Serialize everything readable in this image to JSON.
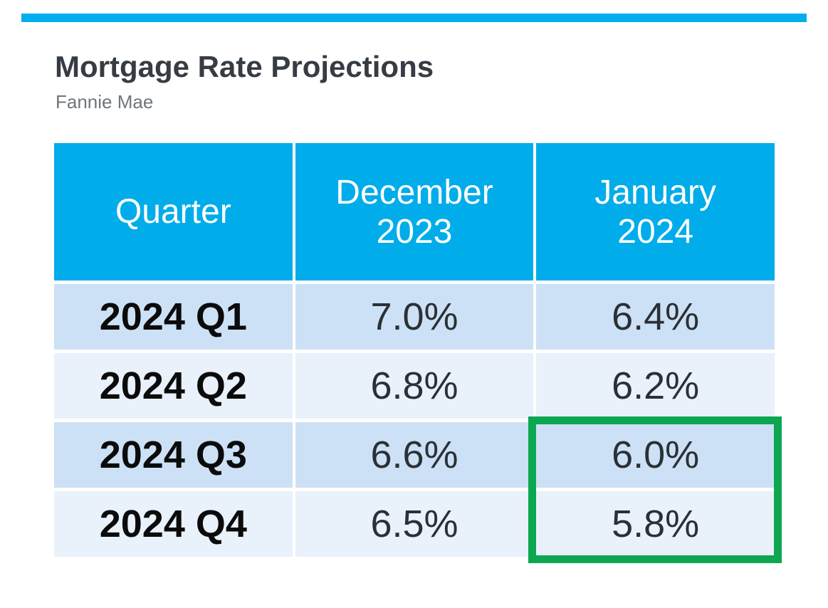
{
  "header": {
    "title": "Mortgage Rate Projections",
    "subtitle": "Fannie Mae"
  },
  "table": {
    "columns": [
      {
        "line1": "Quarter",
        "line2": ""
      },
      {
        "line1": "December",
        "line2": "2023"
      },
      {
        "line1": "January",
        "line2": "2024"
      }
    ],
    "rows": [
      {
        "quarter": "2024 Q1",
        "dec_2023": "7.0%",
        "jan_2024": "6.4%"
      },
      {
        "quarter": "2024 Q2",
        "dec_2023": "6.8%",
        "jan_2024": "6.2%"
      },
      {
        "quarter": "2024 Q3",
        "dec_2023": "6.6%",
        "jan_2024": "6.0%"
      },
      {
        "quarter": "2024 Q4",
        "dec_2023": "6.5%",
        "jan_2024": "5.8%"
      }
    ]
  },
  "highlight": {
    "column": "January 2024",
    "rows": [
      "2024 Q3",
      "2024 Q4"
    ],
    "values": [
      "6.0%",
      "5.8%"
    ]
  },
  "colors": {
    "accent_bar": "#00AEEF",
    "table_header": "#00ACEA",
    "row_odd": "#CCE1F5",
    "row_even": "#E9F1FB",
    "highlight_green": "#0CA750",
    "title_text": "#363C43",
    "subtitle_text": "#6F767D",
    "quarter_text": "#0B0B0B",
    "value_text": "#2B3035"
  },
  "chart_data": {
    "type": "table",
    "title": "Mortgage Rate Projections",
    "subtitle": "Fannie Mae",
    "columns": [
      "Quarter",
      "December 2023",
      "January 2024"
    ],
    "rows": [
      [
        "2024 Q1",
        "7.0%",
        "6.4%"
      ],
      [
        "2024 Q2",
        "6.8%",
        "6.2%"
      ],
      [
        "2024 Q3",
        "6.6%",
        "6.0%"
      ],
      [
        "2024 Q4",
        "6.5%",
        "5.8%"
      ]
    ],
    "series": [
      {
        "name": "December 2023",
        "values": [
          7.0,
          6.8,
          6.6,
          6.5
        ]
      },
      {
        "name": "January 2024",
        "values": [
          6.4,
          6.2,
          6.0,
          5.8
        ]
      }
    ],
    "categories": [
      "2024 Q1",
      "2024 Q2",
      "2024 Q3",
      "2024 Q4"
    ],
    "annotations": [
      {
        "type": "highlight-box",
        "column": "January 2024",
        "rows": [
          "2024 Q3",
          "2024 Q4"
        ],
        "color": "#0CA750"
      }
    ]
  }
}
